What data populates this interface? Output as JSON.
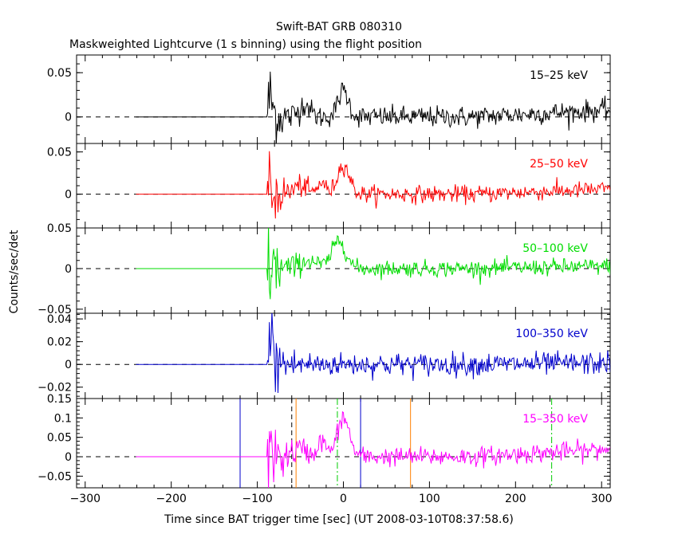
{
  "title": "Swift-BAT GRB 080310",
  "subtitle": "Maskweighted Lightcurve (1 s binning) using the flight position",
  "xlabel": "Time since BAT trigger time [sec] (UT 2008-03-10T08:37:58.6)",
  "ylabel": "Counts/sec/det",
  "chart_data": {
    "type": "line",
    "title": "Swift-BAT GRB 080310",
    "subtitle": "Maskweighted Lightcurve (1 s binning) using the flight position",
    "xlabel": "Time since BAT trigger time [sec] (UT 2008-03-10T08:37:58.6)",
    "ylabel": "Counts/sec/det",
    "xlim": [
      -310,
      310
    ],
    "x_ticks": [
      -300,
      -200,
      -100,
      0,
      100,
      200,
      300
    ],
    "x_tick_labels": [
      "−300",
      "−200",
      "−100",
      "0",
      "100",
      "200",
      "300"
    ],
    "grid": false,
    "data_start": -241,
    "data_end": 310,
    "burst_onset": -88,
    "panels": [
      {
        "band": "15–25 keV",
        "color": "#000000",
        "ylim": [
          -0.03,
          0.07
        ],
        "y_ticks": [
          0,
          0.05
        ],
        "y_tick_labels": [
          "0",
          "0.05"
        ],
        "noise": 0.006,
        "onset_noise": 0.02,
        "features": [
          {
            "t": 0,
            "amp": 0.03,
            "width": 6
          },
          {
            "t": -45,
            "amp": 0.015,
            "width": 6
          },
          {
            "t": -85,
            "amp": 0.02,
            "width": 3
          }
        ],
        "late_level": 0.008
      },
      {
        "band": "25–50 keV",
        "color": "#ff0000",
        "ylim": [
          -0.04,
          0.06
        ],
        "y_ticks": [
          0,
          0.05
        ],
        "y_tick_labels": [
          "0",
          "0.05"
        ],
        "noise": 0.005,
        "onset_noise": 0.02,
        "features": [
          {
            "t": 0,
            "amp": 0.035,
            "width": 7
          },
          {
            "t": -25,
            "amp": 0.015,
            "width": 4
          },
          {
            "t": -50,
            "amp": 0.01,
            "width": 8
          }
        ],
        "late_level": 0.006
      },
      {
        "band": "50–100 keV",
        "color": "#00dd00",
        "ylim": [
          -0.055,
          0.05
        ],
        "y_ticks": [
          -0.05,
          0,
          0.05
        ],
        "y_tick_labels": [
          "−0.05",
          "0",
          "0.05"
        ],
        "noise": 0.005,
        "onset_noise": 0.025,
        "features": [
          {
            "t": -5,
            "amp": 0.035,
            "width": 8
          },
          {
            "t": -40,
            "amp": 0.01,
            "width": 10
          }
        ],
        "late_level": 0.003
      },
      {
        "band": "100–350 keV",
        "color": "#0000cc",
        "ylim": [
          -0.03,
          0.045
        ],
        "y_ticks": [
          -0.02,
          0,
          0.02,
          0.04
        ],
        "y_tick_labels": [
          "−0.02",
          "0",
          "0.02",
          "0.04"
        ],
        "noise": 0.005,
        "onset_noise": 0.02,
        "features": [
          {
            "t": -85,
            "amp": 0.02,
            "width": 3
          }
        ],
        "late_level": 0.001
      },
      {
        "band": "15–350 keV",
        "color": "#ff00ff",
        "ylim": [
          -0.08,
          0.15
        ],
        "y_ticks": [
          -0.05,
          0,
          0.05,
          0.1,
          0.15
        ],
        "y_tick_labels": [
          "−0.05",
          "0",
          "0.05",
          "0.1",
          "0.15"
        ],
        "noise": 0.012,
        "onset_noise": 0.05,
        "features": [
          {
            "t": 0,
            "amp": 0.1,
            "width": 7
          },
          {
            "t": -25,
            "amp": 0.04,
            "width": 5
          },
          {
            "t": -50,
            "amp": 0.02,
            "width": 8
          }
        ],
        "late_level": 0.02
      }
    ],
    "markers": [
      {
        "x": -120,
        "color": "#0000cc",
        "style": "solid"
      },
      {
        "x": 20,
        "color": "#0000cc",
        "style": "solid"
      },
      {
        "x": -60,
        "color": "#000000",
        "style": "dashed"
      },
      {
        "x": -55,
        "color": "#ff8000",
        "style": "solid"
      },
      {
        "x": 78,
        "color": "#ff8000",
        "style": "solid"
      },
      {
        "x": -7,
        "color": "#00cc00",
        "style": "dashdot"
      },
      {
        "x": 242,
        "color": "#00cc00",
        "style": "dashdot"
      }
    ]
  }
}
